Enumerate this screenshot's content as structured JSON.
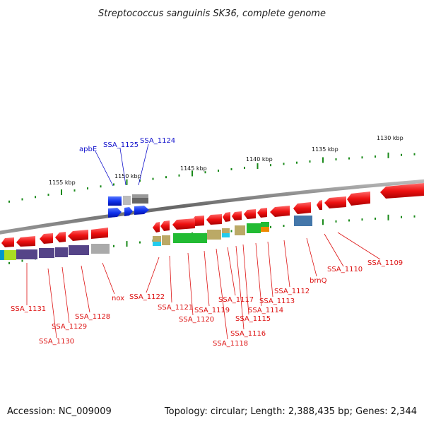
{
  "title": "Streptococcus sanguinis SK36, complete genome",
  "footer": {
    "accession": "Accession: NC_009009",
    "topology": "Topology: circular; Length: 2,388,435 bp; Genes: 2,344"
  },
  "colors": {
    "backbone": "#777777",
    "tick_mark": "#1a8a1a",
    "label_red": "#dd1111",
    "label_blue": "#1111cc",
    "gene_red": "#ee1111",
    "gene_blue": "#1133ee",
    "gene_grey": "#666666"
  },
  "scale": {
    "ticks": [
      {
        "label": "1130 kbp"
      },
      {
        "label": "1135 kbp"
      },
      {
        "label": "1140 kbp"
      },
      {
        "label": "1145 kbp"
      },
      {
        "label": "1150 kbp"
      },
      {
        "label": "1155 kbp"
      }
    ]
  },
  "gene_labels": [
    {
      "text": "apbE",
      "color": "blue"
    },
    {
      "text": "SSA_1125",
      "color": "blue"
    },
    {
      "text": "SSA_1124",
      "color": "blue"
    },
    {
      "text": "SSA_1131",
      "color": "red"
    },
    {
      "text": "SSA_1130",
      "color": "red"
    },
    {
      "text": "SSA_1129",
      "color": "red"
    },
    {
      "text": "SSA_1128",
      "color": "red"
    },
    {
      "text": "nox",
      "color": "red"
    },
    {
      "text": "SSA_1122",
      "color": "red"
    },
    {
      "text": "SSA_1121",
      "color": "red"
    },
    {
      "text": "SSA_1120",
      "color": "red"
    },
    {
      "text": "SSA_1119",
      "color": "red"
    },
    {
      "text": "SSA_1118",
      "color": "red"
    },
    {
      "text": "SSA_1117",
      "color": "red"
    },
    {
      "text": "SSA_1116",
      "color": "red"
    },
    {
      "text": "SSA_1115",
      "color": "red"
    },
    {
      "text": "SSA_1114",
      "color": "red"
    },
    {
      "text": "SSA_1113",
      "color": "red"
    },
    {
      "text": "SSA_1112",
      "color": "red"
    },
    {
      "text": "brnQ",
      "color": "red"
    },
    {
      "text": "SSA_1110",
      "color": "red"
    },
    {
      "text": "SSA_1109",
      "color": "red"
    }
  ]
}
